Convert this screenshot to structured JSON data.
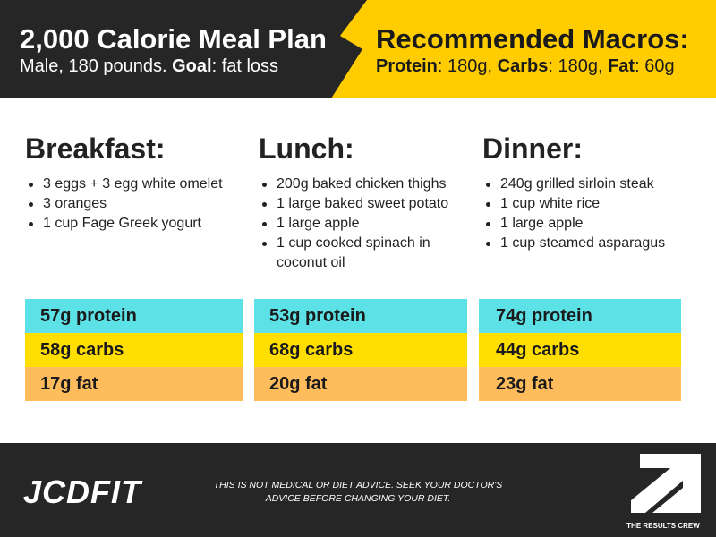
{
  "header": {
    "title": "2,000 Calorie Meal Plan",
    "profile": "Male, 180 pounds.",
    "goal_label": "Goal",
    "goal_value": ": fat loss",
    "macros_title": "Recommended Macros:",
    "protein_label": "Protein",
    "protein_value": ": 180g,",
    "carbs_label": "Carbs",
    "carbs_value": ": 180g,",
    "fat_label": "Fat",
    "fat_value": ": 60g"
  },
  "meals": [
    {
      "title": "Breakfast:",
      "items": [
        "3 eggs + 3 egg white omelet",
        "3 oranges",
        "1 cup Fage Greek yogurt"
      ],
      "macros": {
        "protein": "57g protein",
        "carbs": "58g carbs",
        "fat": "17g fat"
      }
    },
    {
      "title": "Lunch:",
      "items": [
        "200g baked chicken thighs",
        "1 large baked sweet potato",
        "1 large apple",
        "1 cup cooked spinach in coconut oil"
      ],
      "macros": {
        "protein": "53g protein",
        "carbs": "68g carbs",
        "fat": "20g fat"
      }
    },
    {
      "title": "Dinner:",
      "items": [
        "240g grilled sirloin steak",
        "1 cup white rice",
        "1 large apple",
        "1 cup steamed asparagus"
      ],
      "macros": {
        "protein": "74g protein",
        "carbs": "44g carbs",
        "fat": "23g fat"
      }
    }
  ],
  "footer": {
    "brand": "JCDFIT",
    "disclaimer_line1": "THIS IS NOT MEDICAL OR DIET ADVICE. SEEK YOUR DOCTOR'S",
    "disclaimer_line2": "ADVICE BEFORE CHANGING YOUR DIET.",
    "crew_label": "THE RESULTS CREW",
    "crew_logo_icon": "arrow-icon"
  },
  "colors": {
    "header_dark": "#262626",
    "header_yellow": "#ffcc00",
    "protein": "#5ce1e6",
    "carbs": "#ffde00",
    "fat": "#ffbc5c",
    "footer_dark": "#262626"
  }
}
